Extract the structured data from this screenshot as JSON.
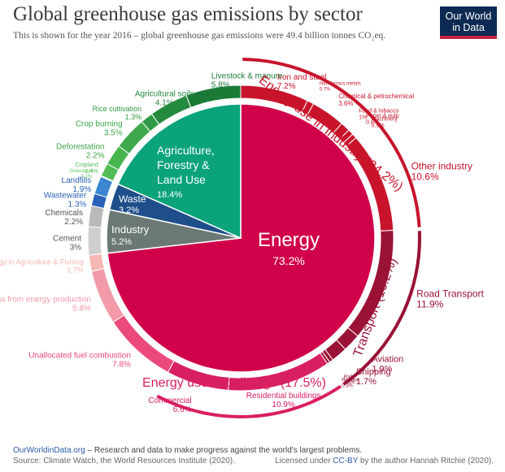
{
  "header": {
    "title": "Global greenhouse gas emissions by sector",
    "subtitle": "This is shown for the year 2016 – global greenhouse gas emissions were 49.4 billion tonnes CO₂eq.",
    "logo_line1": "Our World",
    "logo_line2": "in Data"
  },
  "footer": {
    "site": "OurWorldinData.org",
    "tagline": " – Research and data to make progress against the world's largest problems.",
    "source": "Source: Climate Watch, the World Resources Institute (2020).",
    "license_prefix": "Licensed under ",
    "license": "CC-BY",
    "license_suffix": " by the author Hannah Ritchie  (2020)."
  },
  "colors": {
    "energy": "#d0004a",
    "agriculture": "#0aa37a",
    "waste": "#1f4f8a",
    "industry": "#6b7873",
    "industry_ring": "#c8142b",
    "transport_ring": "#9a1236",
    "buildings_ring": "#d81f61",
    "unallocated": "#ec4a7b",
    "fugitive": "#f29aa8",
    "energy_agri": "#f6b6b4"
  },
  "chart_data": {
    "type": "pie",
    "inner": [
      {
        "name": "Energy",
        "value": 73.2,
        "label": "73.2%"
      },
      {
        "name": "Industry",
        "value": 5.2,
        "label": "5.2%"
      },
      {
        "name": "Waste",
        "value": 3.2,
        "label": "3.2%"
      },
      {
        "name": "Agriculture, Forestry & Land Use",
        "lines": [
          "Agriculture,",
          "Forestry &",
          "Land Use"
        ],
        "value": 18.4,
        "label": "18.4%"
      }
    ],
    "outer": [
      {
        "name": "Iron and steel",
        "value": 7.2,
        "label": "7.2%",
        "group": "industry_energy"
      },
      {
        "name": "Non-ferrous metals",
        "value": 0.7,
        "label": "0.7%",
        "group": "industry_energy"
      },
      {
        "name": "Chemical & petrochemical",
        "value": 3.6,
        "label": "3.6%",
        "group": "industry_energy"
      },
      {
        "name": "Food & tobacco",
        "value": 1.0,
        "label": "1%",
        "group": "industry_energy"
      },
      {
        "name": "Paper & pulp",
        "value": 0.6,
        "label": "0.6%",
        "group": "industry_energy"
      },
      {
        "name": "Machinery",
        "value": 0.5,
        "label": "0.5%",
        "group": "industry_energy"
      },
      {
        "name": "Other industry",
        "value": 10.6,
        "label": "10.6%",
        "group": "industry_energy"
      },
      {
        "name": "Road Transport",
        "value": 11.9,
        "label": "11.9%",
        "group": "transport"
      },
      {
        "name": "Aviation",
        "value": 1.9,
        "label": "1.9%",
        "group": "transport"
      },
      {
        "name": "Shipping",
        "value": 1.7,
        "label": "1.7%",
        "group": "transport"
      },
      {
        "name": "Rail",
        "value": 0.4,
        "label": "0.4%",
        "group": "transport"
      },
      {
        "name": "Pipeline",
        "value": 0.3,
        "label": "0.3%",
        "group": "transport"
      },
      {
        "name": "Residential buildings",
        "value": 10.9,
        "label": "10.9%",
        "group": "buildings"
      },
      {
        "name": "Commercial",
        "value": 6.6,
        "label": "6.6%",
        "group": "buildings"
      },
      {
        "name": "Unallocated fuel combustion",
        "value": 7.8,
        "label": "7.8%",
        "group": "other_energy"
      },
      {
        "name": "Fugitive emissions from energy production",
        "value": 5.8,
        "label": "5.8%",
        "group": "other_energy"
      },
      {
        "name": "Energy in Agriculture & Fishing",
        "value": 1.7,
        "label": "1.7%",
        "group": "other_energy"
      },
      {
        "name": "Cement",
        "value": 3.0,
        "label": "3%",
        "group": "industry"
      },
      {
        "name": "Chemicals",
        "value": 2.2,
        "label": "2.2%",
        "group": "industry"
      },
      {
        "name": "Wastewater",
        "value": 1.3,
        "label": "1.3%",
        "group": "waste"
      },
      {
        "name": "Landfills",
        "value": 1.9,
        "label": "1.9%",
        "group": "waste"
      },
      {
        "name": "Grassland",
        "value": 0.1,
        "label": "0.1%",
        "group": "agriculture"
      },
      {
        "name": "Cropland",
        "value": 1.4,
        "label": "1.4%",
        "group": "agriculture"
      },
      {
        "name": "Deforestation",
        "value": 2.2,
        "label": "2.2%",
        "group": "agriculture"
      },
      {
        "name": "Crop burning",
        "value": 3.5,
        "label": "3.5%",
        "group": "agriculture"
      },
      {
        "name": "Rice cultivation",
        "value": 1.3,
        "label": "1.3%",
        "group": "agriculture"
      },
      {
        "name": "Agricultural soils",
        "value": 4.1,
        "label": "4.1%",
        "group": "agriculture"
      },
      {
        "name": "Livestock & manure",
        "value": 5.8,
        "label": "5.8%",
        "group": "agriculture"
      }
    ],
    "group_labels": [
      {
        "name": "Energy use in Industry",
        "value": 24.2,
        "label": "Energy use in Industry (24.2%)"
      },
      {
        "name": "Transport",
        "value": 16.2,
        "label": "Transport (16.2%)"
      },
      {
        "name": "Energy use in buildings",
        "value": 17.5,
        "label": "Energy use in buildings (17.5%)"
      }
    ]
  }
}
